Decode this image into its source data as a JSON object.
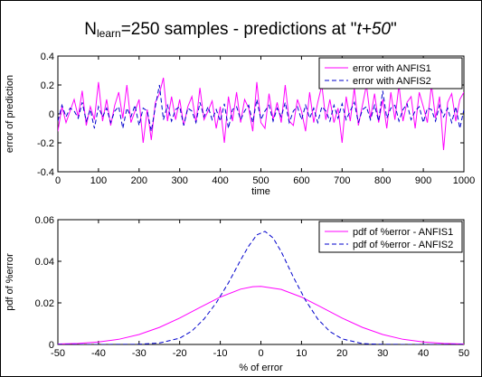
{
  "figure": {
    "title_main": "N",
    "title_sub": "learn",
    "title_rest": "=250 samples  -  predictions at \"",
    "title_italic": "t+50",
    "title_end": "\""
  },
  "colors": {
    "anfis1": "#ff00ff",
    "anfis2": "#0000cc",
    "axes": "#000000"
  },
  "chart_data": [
    {
      "type": "line",
      "title": "",
      "xlabel": "time",
      "ylabel": "error of prediction",
      "xlim": [
        0,
        1000
      ],
      "ylim": [
        -0.4,
        0.4
      ],
      "xticks": [
        0,
        100,
        200,
        300,
        400,
        500,
        600,
        700,
        800,
        900,
        1000
      ],
      "xtick_labels": [
        "0",
        "100",
        "200",
        "300",
        "400",
        "500",
        "600",
        "700",
        "800",
        "900",
        "1000"
      ],
      "yticks": [
        -0.4,
        -0.2,
        0,
        0.2,
        0.4
      ],
      "ytick_labels": [
        "-0.4",
        "-0.2",
        "0",
        "0.2",
        "0.4"
      ],
      "grid": false,
      "legend_position": "top-right",
      "series": [
        {
          "name": "error with ANFIS1",
          "line_style": "solid",
          "color_key": "anfis1",
          "x": [
            0,
            10,
            20,
            30,
            40,
            50,
            60,
            70,
            80,
            90,
            100,
            110,
            120,
            130,
            140,
            150,
            160,
            170,
            180,
            190,
            200,
            210,
            220,
            230,
            240,
            250,
            260,
            270,
            280,
            290,
            300,
            310,
            320,
            330,
            340,
            350,
            360,
            370,
            380,
            390,
            400,
            410,
            420,
            430,
            440,
            450,
            460,
            470,
            480,
            490,
            500,
            510,
            520,
            530,
            540,
            550,
            560,
            570,
            580,
            590,
            600,
            610,
            620,
            630,
            640,
            650,
            660,
            670,
            680,
            690,
            700,
            710,
            720,
            730,
            740,
            750,
            760,
            770,
            780,
            790,
            800,
            810,
            820,
            830,
            840,
            850,
            860,
            870,
            880,
            890,
            900,
            910,
            920,
            930,
            940,
            950,
            960,
            970,
            980,
            990,
            1000
          ],
          "y": [
            -0.12,
            0.05,
            -0.06,
            0.02,
            0.1,
            -0.02,
            0.16,
            -0.08,
            0.05,
            -0.04,
            0.22,
            -0.05,
            0.1,
            -0.08,
            0.06,
            0.15,
            -0.03,
            0.2,
            -0.06,
            0.02,
            0.1,
            -0.2,
            0.03,
            -0.18,
            0.08,
            0.14,
            0.25,
            -0.05,
            0.12,
            -0.04,
            0.1,
            -0.08,
            0.05,
            0.12,
            -0.06,
            0.18,
            -0.04,
            0.02,
            0.09,
            -0.1,
            0.05,
            -0.2,
            0.12,
            -0.05,
            0.15,
            -0.06,
            0.1,
            0.04,
            -0.12,
            0.22,
            -0.06,
            -0.1,
            0.14,
            -0.04,
            0.08,
            -0.06,
            0.2,
            -0.05,
            -0.08,
            0.1,
            0.02,
            -0.12,
            0.15,
            -0.06,
            0.08,
            0.2,
            -0.04,
            0.1,
            -0.06,
            0.04,
            -0.2,
            0.12,
            -0.05,
            0.18,
            -0.08,
            0.06,
            0.2,
            -0.03,
            0.14,
            -0.06,
            0.1,
            -0.1,
            0.15,
            -0.04,
            0.2,
            -0.05,
            0.08,
            0.12,
            -0.1,
            0.15,
            0.05,
            -0.06,
            0.2,
            -0.03,
            0.12,
            -0.25,
            0.08,
            0.14,
            -0.05,
            0.1,
            0.15
          ]
        },
        {
          "name": "error with ANFIS2",
          "line_style": "dashed",
          "color_key": "anfis2",
          "x": [
            0,
            10,
            20,
            30,
            40,
            50,
            60,
            70,
            80,
            90,
            100,
            110,
            120,
            130,
            140,
            150,
            160,
            170,
            180,
            190,
            200,
            210,
            220,
            230,
            240,
            250,
            260,
            270,
            280,
            290,
            300,
            310,
            320,
            330,
            340,
            350,
            360,
            370,
            380,
            390,
            400,
            410,
            420,
            430,
            440,
            450,
            460,
            470,
            480,
            490,
            500,
            510,
            520,
            530,
            540,
            550,
            560,
            570,
            580,
            590,
            600,
            610,
            620,
            630,
            640,
            650,
            660,
            670,
            680,
            690,
            700,
            710,
            720,
            730,
            740,
            750,
            760,
            770,
            780,
            790,
            800,
            810,
            820,
            830,
            840,
            850,
            860,
            870,
            880,
            890,
            900,
            910,
            920,
            930,
            940,
            950,
            960,
            970,
            980,
            990,
            1000
          ],
          "y": [
            -0.05,
            0.06,
            -0.02,
            0.04,
            0.02,
            -0.03,
            0.08,
            -0.05,
            0.03,
            -0.1,
            0.05,
            -0.02,
            0.04,
            -0.06,
            0.02,
            0.05,
            -0.1,
            0.04,
            -0.02,
            0.06,
            -0.08,
            0.04,
            0.02,
            -0.12,
            0.05,
            0.2,
            -0.04,
            0.06,
            -0.05,
            0.03,
            0.05,
            -0.08,
            0.04,
            0.02,
            -0.06,
            0.08,
            -0.02,
            0.05,
            -0.04,
            0.03,
            -0.05,
            0.07,
            -0.1,
            0.03,
            0.05,
            -0.04,
            0.02,
            0.06,
            -0.06,
            0.1,
            -0.04,
            0.02,
            0.06,
            -0.05,
            0.04,
            -0.02,
            0.08,
            -0.06,
            0.02,
            0.05,
            -0.04,
            0.06,
            -0.03,
            0.04,
            -0.06,
            0.05,
            0.02,
            -0.05,
            0.06,
            -0.03,
            0.07,
            -0.04,
            0.02,
            0.08,
            -0.06,
            0.03,
            0.05,
            -0.04,
            0.06,
            -0.05,
            0.16,
            -0.03,
            0.04,
            0.06,
            -0.05,
            0.03,
            0.07,
            -0.04,
            0.02,
            0.05,
            -0.06,
            0.04,
            0.03,
            -0.05,
            0.06,
            -0.02,
            0.04,
            -0.06,
            0.05,
            -0.1,
            0.03
          ]
        }
      ]
    },
    {
      "type": "line",
      "title": "",
      "xlabel": "% of error",
      "ylabel": "pdf of %error",
      "xlim": [
        -50,
        50
      ],
      "ylim": [
        0,
        0.06
      ],
      "xticks": [
        -50,
        -40,
        -30,
        -20,
        -10,
        0,
        10,
        20,
        30,
        40,
        50
      ],
      "xtick_labels": [
        "-50",
        "-40",
        "-30",
        "-20",
        "-10",
        "0",
        "10",
        "20",
        "30",
        "40",
        "50"
      ],
      "yticks": [
        0,
        0.02,
        0.04,
        0.06
      ],
      "ytick_labels": [
        "0",
        "0.02",
        "0.04",
        "0.06"
      ],
      "grid": false,
      "legend_position": "top-right",
      "series": [
        {
          "name": "pdf of %error - ANFIS1",
          "line_style": "solid",
          "color_key": "anfis1",
          "x": [
            -50,
            -45,
            -40,
            -35,
            -30,
            -25,
            -20,
            -15,
            -10,
            -5,
            -2,
            0,
            5,
            10,
            15,
            20,
            25,
            30,
            35,
            40,
            45,
            50
          ],
          "y": [
            0.0002,
            0.0005,
            0.0012,
            0.0025,
            0.0048,
            0.0082,
            0.0127,
            0.0178,
            0.0228,
            0.0266,
            0.0278,
            0.0279,
            0.0265,
            0.0228,
            0.0178,
            0.0127,
            0.0082,
            0.0048,
            0.0025,
            0.0012,
            0.0005,
            0.0002
          ]
        },
        {
          "name": "pdf of %error - ANFIS2",
          "line_style": "dashed",
          "color_key": "anfis2",
          "x": [
            -50,
            -40,
            -30,
            -25,
            -20,
            -17,
            -14,
            -11,
            -8,
            -5,
            -3,
            -1,
            1,
            3,
            5,
            8,
            11,
            14,
            17,
            20,
            25,
            30,
            40,
            50
          ],
          "y": [
            0,
            0,
            0.0001,
            0.0007,
            0.003,
            0.0065,
            0.0122,
            0.02,
            0.0296,
            0.0406,
            0.0473,
            0.0527,
            0.0544,
            0.0512,
            0.0446,
            0.0324,
            0.0212,
            0.0122,
            0.0062,
            0.0027,
            0.0004,
            4e-05,
            0,
            0
          ]
        }
      ]
    }
  ]
}
